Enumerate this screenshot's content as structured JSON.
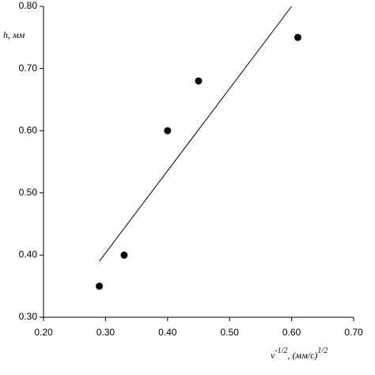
{
  "chart_data": {
    "type": "scatter",
    "ylabel": "h, мм",
    "xlabel": {
      "base": "ν",
      "exp": "-1/2",
      "unit": ", (мм/с)",
      "unit_exp": "1/2"
    },
    "xlim": [
      0.2,
      0.7
    ],
    "xticks": [
      {
        "value": 0.2,
        "label": "0.20"
      },
      {
        "value": 0.3,
        "label": "0.30"
      },
      {
        "value": 0.4,
        "label": "0.40"
      },
      {
        "value": 0.5,
        "label": "0.50"
      },
      {
        "value": 0.6,
        "label": "0.60"
      },
      {
        "value": 0.7,
        "label": "0.70"
      }
    ],
    "ylim": [
      0.3,
      0.8
    ],
    "yticks": [
      {
        "value": 0.3,
        "label": "0.30"
      },
      {
        "value": 0.4,
        "label": "0.40"
      },
      {
        "value": 0.5,
        "label": "0.50"
      },
      {
        "value": 0.6,
        "label": "0.60"
      },
      {
        "value": 0.7,
        "label": "0.70"
      },
      {
        "value": 0.8,
        "label": "0.80"
      }
    ],
    "series": [
      {
        "type": "scatter",
        "color": "#000000",
        "x": [
          0.29,
          0.33,
          0.4,
          0.45,
          0.61
        ],
        "values": [
          0.35,
          0.4,
          0.6,
          0.68,
          0.75
        ]
      },
      {
        "type": "line",
        "color": "#000000",
        "x": [
          0.29,
          0.6
        ],
        "values": [
          0.39,
          0.8
        ]
      }
    ]
  }
}
